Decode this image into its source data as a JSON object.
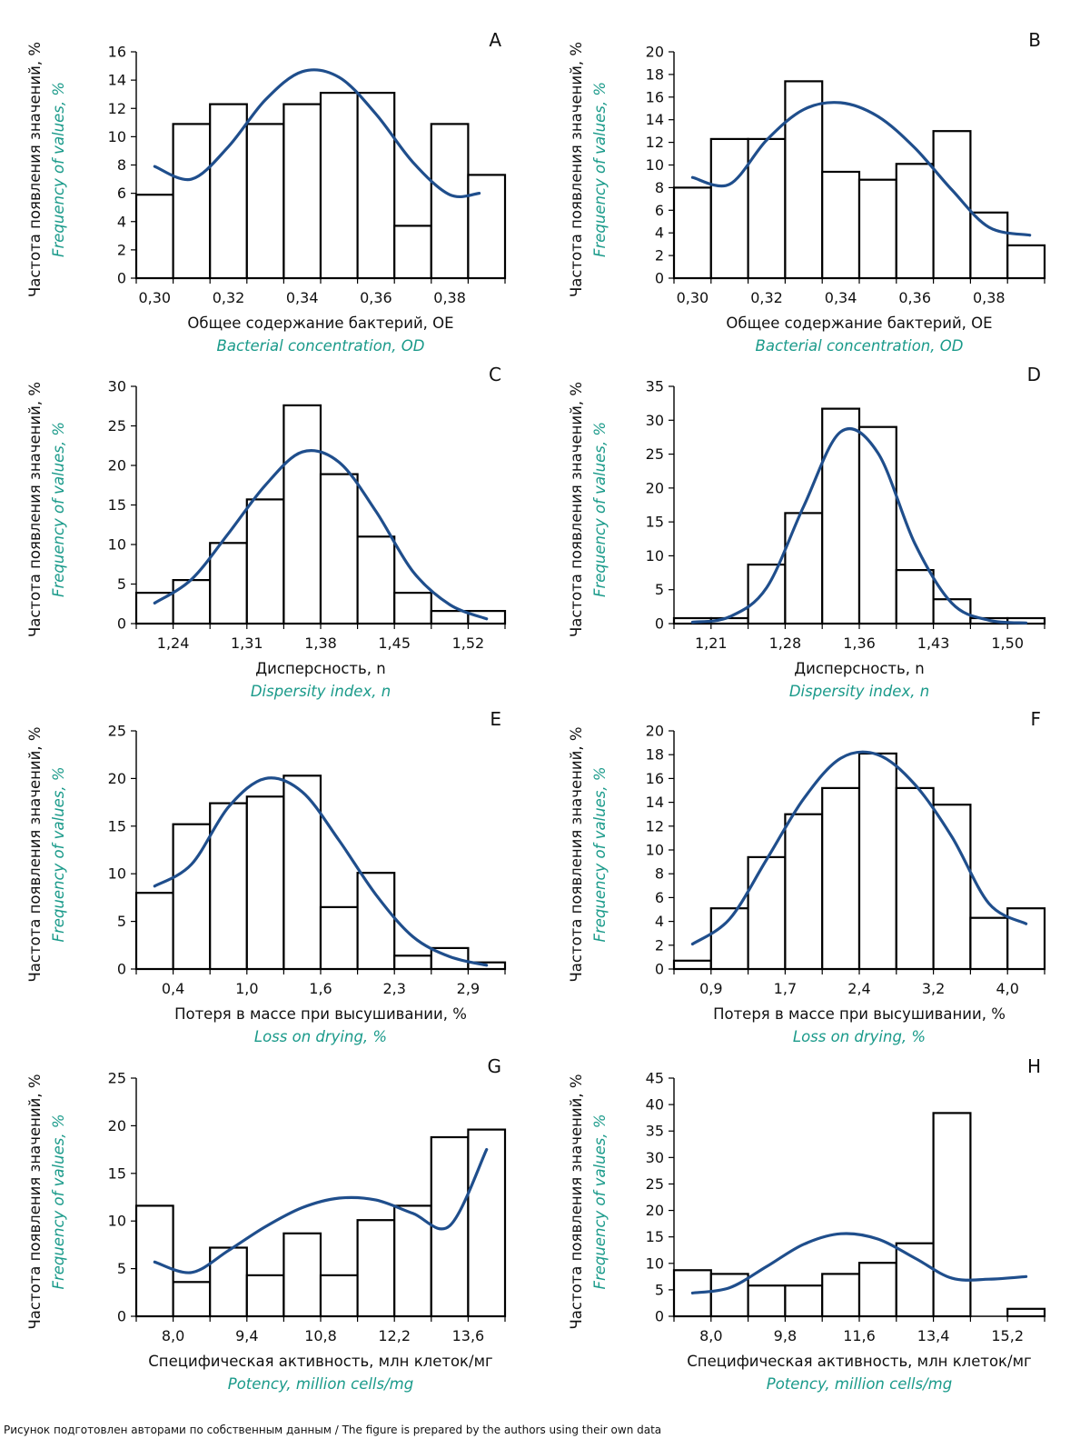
{
  "caption": "Рисунок подготовлен авторами по собственным данным / The figure is prepared by the authors using their own data",
  "colors": {
    "curve": "#1f4e8c",
    "teal": "#1a9a8a",
    "bar_stroke": "#000000",
    "bar_fill": "#ffffff"
  },
  "chart_data": [
    {
      "panel": "A",
      "type": "bar",
      "ylabel_ru": "Частота появления значений, %",
      "ylabel_en": "Frequency of values, %",
      "xlabel_ru": "Общее содержание бактерий, ОЕ",
      "xlabel_en": "Bacterial concentration, OD",
      "ylim": [
        0,
        16
      ],
      "yticks": [
        0,
        2,
        4,
        6,
        8,
        10,
        12,
        14,
        16
      ],
      "xticks": [
        "0,30",
        "0,32",
        "0,34",
        "0,36",
        "0,38"
      ],
      "xtick_bins": [
        0.5,
        2.5,
        4.5,
        6.5,
        8.5
      ],
      "values": [
        5.9,
        10.9,
        12.3,
        10.9,
        12.3,
        13.1,
        13.1,
        3.7,
        10.9,
        7.3
      ],
      "curve": [
        [
          0.5,
          7.9
        ],
        [
          1.5,
          7.0
        ],
        [
          2.5,
          9.3
        ],
        [
          3.5,
          12.6
        ],
        [
          4.5,
          14.6
        ],
        [
          5.5,
          14.2
        ],
        [
          6.5,
          11.6
        ],
        [
          7.5,
          8.2
        ],
        [
          8.5,
          5.9
        ],
        [
          9.3,
          6.0
        ]
      ]
    },
    {
      "panel": "B",
      "type": "bar",
      "ylabel_ru": "Частота появления значений, %",
      "ylabel_en": "Frequency of values, %",
      "xlabel_ru": "Общее содержание бактерий, ОЕ",
      "xlabel_en": "Bacterial concentration, OD",
      "ylim": [
        0,
        20
      ],
      "yticks": [
        0,
        2,
        4,
        6,
        8,
        10,
        12,
        14,
        16,
        18,
        20
      ],
      "xticks": [
        "0,30",
        "0,32",
        "0,34",
        "0,36",
        "0,38"
      ],
      "xtick_bins": [
        0.5,
        2.5,
        4.5,
        6.5,
        8.5
      ],
      "values": [
        8.0,
        12.3,
        12.3,
        17.4,
        9.4,
        8.7,
        10.1,
        13.0,
        5.8,
        2.9
      ],
      "curve": [
        [
          0.5,
          8.9
        ],
        [
          1.5,
          8.3
        ],
        [
          2.5,
          12.2
        ],
        [
          3.5,
          14.9
        ],
        [
          4.5,
          15.5
        ],
        [
          5.5,
          14.3
        ],
        [
          6.5,
          11.5
        ],
        [
          7.5,
          7.8
        ],
        [
          8.5,
          4.5
        ],
        [
          9.6,
          3.8
        ]
      ]
    },
    {
      "panel": "C",
      "type": "bar",
      "ylabel_ru": "Частота появления значений, %",
      "ylabel_en": "Frequency of values, %",
      "xlabel_ru": "Дисперсность, n",
      "xlabel_en": "Dispersity index, n",
      "ylim": [
        0,
        30
      ],
      "yticks": [
        0,
        5,
        10,
        15,
        20,
        25,
        30
      ],
      "xticks": [
        "1,24",
        "1,31",
        "1,38",
        "1,45",
        "1,52"
      ],
      "xtick_bins": [
        1,
        3,
        5,
        7,
        9
      ],
      "values": [
        3.9,
        5.5,
        10.2,
        15.7,
        27.6,
        18.9,
        11.0,
        3.9,
        1.6,
        1.6
      ],
      "curve": [
        [
          0.5,
          2.6
        ],
        [
          1.5,
          5.6
        ],
        [
          2.5,
          11.4
        ],
        [
          3.5,
          17.5
        ],
        [
          4.5,
          21.7
        ],
        [
          5.5,
          20.4
        ],
        [
          6.5,
          14.2
        ],
        [
          7.5,
          6.6
        ],
        [
          8.5,
          2.4
        ],
        [
          9.5,
          0.6
        ]
      ]
    },
    {
      "panel": "D",
      "type": "bar",
      "ylabel_ru": "Частота появления значений, %",
      "ylabel_en": "Frequency of values, %",
      "xlabel_ru": "Дисперсность, n",
      "xlabel_en": "Dispersity index, n",
      "ylim": [
        0,
        35
      ],
      "yticks": [
        0,
        5,
        10,
        15,
        20,
        25,
        30,
        35
      ],
      "xticks": [
        "1,21",
        "1,28",
        "1,36",
        "1,43",
        "1,50"
      ],
      "xtick_bins": [
        1,
        3,
        5,
        7,
        9
      ],
      "values": [
        0.8,
        0.8,
        8.7,
        16.3,
        31.7,
        29.0,
        7.9,
        3.6,
        0.8,
        0.8
      ],
      "curve": [
        [
          0.5,
          0.2
        ],
        [
          1.5,
          1.0
        ],
        [
          2.5,
          5.3
        ],
        [
          3.5,
          17.3
        ],
        [
          4.5,
          28.3
        ],
        [
          5.5,
          25.2
        ],
        [
          6.5,
          11.8
        ],
        [
          7.5,
          3.0
        ],
        [
          8.5,
          0.5
        ],
        [
          9.5,
          0.1
        ]
      ]
    },
    {
      "panel": "E",
      "type": "bar",
      "ylabel_ru": "Частота появления значений, %",
      "ylabel_en": "Frequency of values, %",
      "xlabel_ru": "Потеря в массе при высушивании, %",
      "xlabel_en": "Loss on drying, %",
      "ylim": [
        0,
        25
      ],
      "yticks": [
        0,
        5,
        10,
        15,
        20,
        25
      ],
      "xticks": [
        "0,4",
        "1,0",
        "1,6",
        "2,3",
        "2,9"
      ],
      "xtick_bins": [
        1,
        3,
        5,
        7,
        9
      ],
      "values": [
        8.0,
        15.2,
        17.4,
        18.1,
        20.3,
        6.5,
        10.1,
        1.4,
        2.2,
        0.7
      ],
      "curve": [
        [
          0.5,
          8.7
        ],
        [
          1.5,
          11.0
        ],
        [
          2.5,
          17.0
        ],
        [
          3.5,
          20.0
        ],
        [
          4.5,
          18.6
        ],
        [
          5.5,
          13.5
        ],
        [
          6.5,
          7.8
        ],
        [
          7.5,
          3.4
        ],
        [
          8.5,
          1.3
        ],
        [
          9.5,
          0.4
        ]
      ]
    },
    {
      "panel": "F",
      "type": "bar",
      "ylabel_ru": "Частота появления значений, %",
      "ylabel_en": "Frequency of values, %",
      "xlabel_ru": "Потеря в массе при высушивании, %",
      "xlabel_en": "Loss on drying, %",
      "ylim": [
        0,
        20
      ],
      "yticks": [
        0,
        2,
        4,
        6,
        8,
        10,
        12,
        14,
        16,
        18,
        20
      ],
      "xticks": [
        "0,9",
        "1,7",
        "2,4",
        "3,2",
        "4,0"
      ],
      "xtick_bins": [
        1,
        3,
        5,
        7,
        9
      ],
      "values": [
        0.7,
        5.1,
        9.4,
        13.0,
        15.2,
        18.1,
        15.2,
        13.8,
        4.3,
        5.1
      ],
      "curve": [
        [
          0.5,
          2.1
        ],
        [
          1.5,
          4.2
        ],
        [
          2.5,
          9.2
        ],
        [
          3.5,
          14.3
        ],
        [
          4.5,
          17.7
        ],
        [
          5.5,
          18.0
        ],
        [
          6.5,
          15.5
        ],
        [
          7.5,
          11.1
        ],
        [
          8.5,
          5.5
        ],
        [
          9.5,
          3.8
        ]
      ]
    },
    {
      "panel": "G",
      "type": "bar",
      "ylabel_ru": "Частота появления значений, %",
      "ylabel_en": "Frequency of values, %",
      "xlabel_ru": "Специфическая активность, млн клеток/мг",
      "xlabel_en": "Potency, million cells/mg",
      "ylim": [
        0,
        25
      ],
      "yticks": [
        0,
        5,
        10,
        15,
        20,
        25
      ],
      "xticks": [
        "8,0",
        "9,4",
        "10,8",
        "12,2",
        "13,6"
      ],
      "xtick_bins": [
        1,
        3,
        5,
        7,
        9
      ],
      "values": [
        11.6,
        3.6,
        7.2,
        4.3,
        8.7,
        4.3,
        10.1,
        11.6,
        18.8,
        19.6
      ],
      "curve": [
        [
          0.5,
          5.7
        ],
        [
          1.5,
          4.6
        ],
        [
          2.5,
          6.9
        ],
        [
          3.5,
          9.4
        ],
        [
          4.5,
          11.4
        ],
        [
          5.5,
          12.4
        ],
        [
          6.5,
          12.2
        ],
        [
          7.5,
          10.8
        ],
        [
          8.5,
          9.5
        ],
        [
          9.5,
          17.5
        ]
      ]
    },
    {
      "panel": "H",
      "type": "bar",
      "ylabel_ru": "Частота появления значений, %",
      "ylabel_en": "Frequency of values, %",
      "xlabel_ru": "Специфическая активность, млн клеток/мг",
      "xlabel_en": "Potency, million cells/mg",
      "ylim": [
        0,
        45
      ],
      "yticks": [
        0,
        5,
        10,
        15,
        20,
        25,
        30,
        35,
        40,
        45
      ],
      "xticks": [
        "8,0",
        "9,8",
        "11,6",
        "13,4",
        "15,2"
      ],
      "xtick_bins": [
        1,
        3,
        5,
        7,
        9
      ],
      "values": [
        8.7,
        8.0,
        5.8,
        5.8,
        8.0,
        10.1,
        13.8,
        38.4,
        0,
        1.4
      ],
      "curve": [
        [
          0.5,
          4.4
        ],
        [
          1.5,
          5.4
        ],
        [
          2.5,
          9.4
        ],
        [
          3.5,
          13.6
        ],
        [
          4.5,
          15.6
        ],
        [
          5.5,
          14.6
        ],
        [
          6.5,
          11.0
        ],
        [
          7.5,
          7.2
        ],
        [
          8.5,
          7.0
        ],
        [
          9.5,
          7.5
        ]
      ]
    }
  ]
}
